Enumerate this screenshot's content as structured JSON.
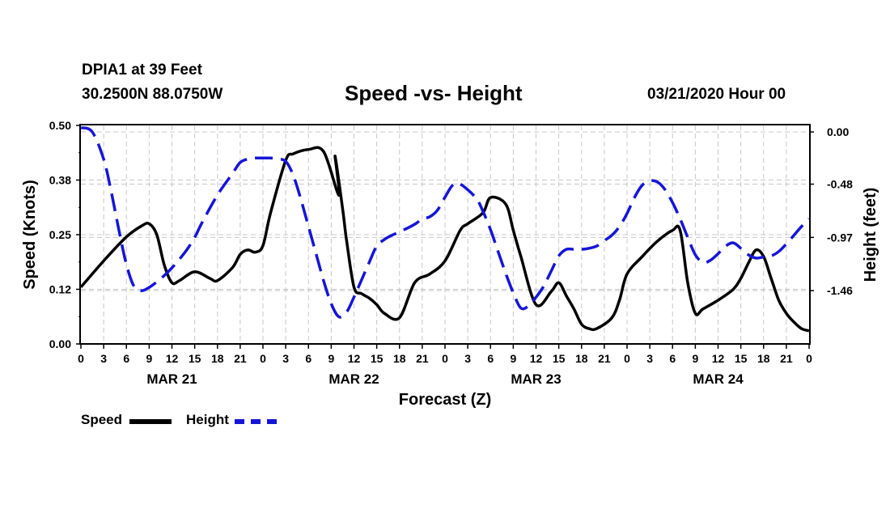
{
  "header": {
    "station": "DPIA1 at 39 Feet",
    "latlon": "30.2500N 88.0750W",
    "title": "Speed -vs- Height",
    "datetime": "03/21/2020 Hour 00"
  },
  "legend": {
    "speed": "Speed",
    "height": "Height"
  },
  "chart_data": {
    "type": "line",
    "title": "Speed -vs- Height",
    "xlabel": "Forecast (Z)",
    "ylabel_left": "Speed (Knots)",
    "ylabel_right": "Height (feet)",
    "xlim": [
      0,
      96
    ],
    "ylim_left": [
      0,
      0.5
    ],
    "ylim_right": [
      -1.95,
      0.06
    ],
    "yticks_left": [
      "0.00",
      "0.12",
      "0.25",
      "0.38",
      "0.50"
    ],
    "yticks_left_values": [
      0,
      0.125,
      0.25,
      0.375,
      0.5
    ],
    "yticks_right": [
      "0.00",
      "-0.48",
      "-0.97",
      "-1.46"
    ],
    "yticks_right_values": [
      0,
      -0.48,
      -0.97,
      -1.46
    ],
    "xtick_labels": [
      "0",
      "3",
      "6",
      "9",
      "12",
      "15",
      "18",
      "21",
      "0",
      "3",
      "6",
      "9",
      "12",
      "15",
      "18",
      "21",
      "0",
      "3",
      "6",
      "9",
      "12",
      "15",
      "18",
      "21",
      "0",
      "3",
      "6",
      "9",
      "12",
      "15",
      "18",
      "21",
      "0"
    ],
    "day_labels": [
      {
        "label": "MAR 21",
        "hour": 12
      },
      {
        "label": "MAR 22",
        "hour": 36
      },
      {
        "label": "MAR 23",
        "hour": 60
      },
      {
        "label": "MAR 24",
        "hour": 84
      }
    ],
    "grid": true,
    "series": [
      {
        "name": "Speed",
        "axis": "left",
        "color": "#000000",
        "style": "solid",
        "x": [
          0,
          3,
          6,
          8,
          9,
          10,
          11,
          12,
          13,
          15,
          17,
          18,
          20,
          21,
          22,
          23,
          24,
          25,
          27,
          28,
          30,
          32,
          34,
          33.5,
          34.5,
          35,
          36,
          37,
          38,
          39,
          40,
          42,
          44,
          46,
          48,
          50,
          51,
          53,
          54,
          56,
          57,
          58,
          60,
          62,
          63,
          64,
          65,
          66,
          67,
          68,
          70,
          71,
          72,
          74,
          76,
          78,
          79,
          80,
          81,
          82,
          84,
          86,
          87,
          88,
          89,
          90,
          91,
          92,
          93,
          94,
          95,
          96
        ],
        "values": [
          0.13,
          0.19,
          0.245,
          0.27,
          0.275,
          0.25,
          0.18,
          0.14,
          0.145,
          0.165,
          0.15,
          0.145,
          0.175,
          0.205,
          0.215,
          0.21,
          0.225,
          0.3,
          0.42,
          0.435,
          0.445,
          0.44,
          0.34,
          0.43,
          0.31,
          0.24,
          0.13,
          0.115,
          0.105,
          0.09,
          0.07,
          0.06,
          0.14,
          0.16,
          0.19,
          0.26,
          0.275,
          0.3,
          0.335,
          0.32,
          0.26,
          0.2,
          0.09,
          0.12,
          0.14,
          0.11,
          0.08,
          0.045,
          0.035,
          0.035,
          0.06,
          0.1,
          0.16,
          0.2,
          0.235,
          0.26,
          0.26,
          0.14,
          0.07,
          0.08,
          0.1,
          0.125,
          0.15,
          0.185,
          0.215,
          0.2,
          0.15,
          0.1,
          0.07,
          0.05,
          0.035,
          0.03
        ]
      },
      {
        "name": "Height",
        "axis": "right",
        "color": "#1515d8",
        "style": "dashed",
        "x": [
          0,
          1.5,
          3,
          4,
          5,
          6,
          7,
          8,
          9,
          10,
          11,
          12,
          13,
          14,
          15,
          16,
          18,
          20,
          21,
          22,
          23,
          24,
          25,
          26,
          27,
          28,
          29,
          30,
          31,
          32,
          33,
          34,
          35,
          36,
          38,
          39,
          40,
          41,
          42,
          44,
          45,
          46,
          47,
          48,
          49,
          50,
          52,
          53,
          54,
          55,
          56,
          57,
          58,
          59,
          60,
          61,
          62,
          63,
          64,
          65,
          66,
          67,
          68,
          69,
          70,
          71,
          72,
          73,
          74,
          75,
          76,
          77,
          78,
          79,
          80,
          81,
          82,
          83,
          84,
          85,
          86,
          87,
          88,
          89,
          90,
          91,
          92,
          93,
          94,
          95,
          96
        ],
        "values": [
          0.04,
          0.0,
          -0.25,
          -0.55,
          -0.9,
          -1.22,
          -1.42,
          -1.46,
          -1.43,
          -1.38,
          -1.32,
          -1.25,
          -1.17,
          -1.08,
          -0.97,
          -0.83,
          -0.58,
          -0.38,
          -0.28,
          -0.25,
          -0.24,
          -0.24,
          -0.24,
          -0.25,
          -0.27,
          -0.4,
          -0.62,
          -0.87,
          -1.12,
          -1.37,
          -1.58,
          -1.7,
          -1.66,
          -1.52,
          -1.2,
          -1.05,
          -0.99,
          -0.95,
          -0.92,
          -0.85,
          -0.8,
          -0.78,
          -0.72,
          -0.6,
          -0.49,
          -0.48,
          -0.6,
          -0.73,
          -0.9,
          -1.1,
          -1.3,
          -1.48,
          -1.62,
          -1.6,
          -1.52,
          -1.42,
          -1.28,
          -1.14,
          -1.08,
          -1.08,
          -1.08,
          -1.07,
          -1.05,
          -1.0,
          -0.95,
          -0.87,
          -0.75,
          -0.6,
          -0.49,
          -0.45,
          -0.46,
          -0.53,
          -0.65,
          -0.8,
          -0.97,
          -1.13,
          -1.2,
          -1.18,
          -1.12,
          -1.05,
          -1.02,
          -1.07,
          -1.13,
          -1.16,
          -1.15,
          -1.14,
          -1.1,
          -1.03,
          -0.95,
          -0.87,
          -0.8
        ]
      }
    ]
  }
}
